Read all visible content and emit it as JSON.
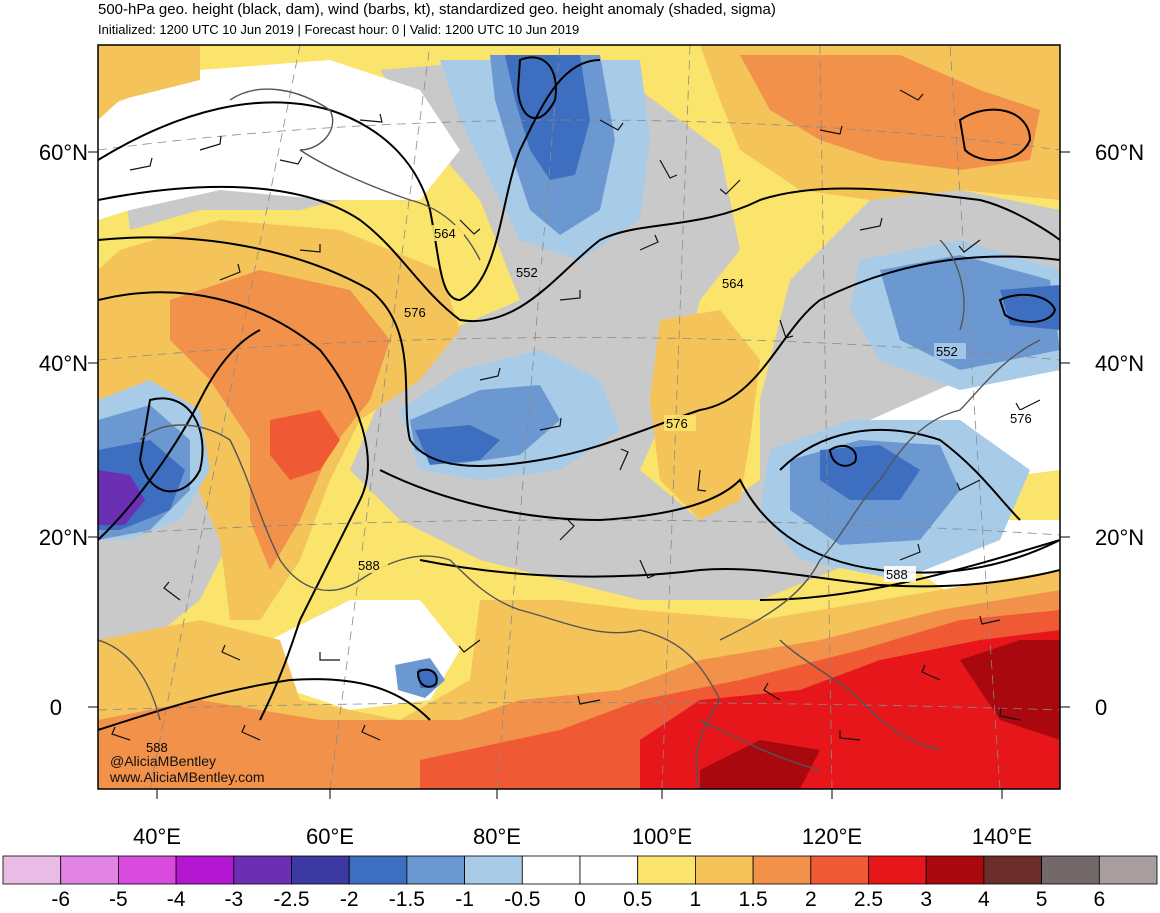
{
  "header": {
    "title": "500-hPa geo. height (black, dam), wind (barbs, kt), standardized geo. height anomaly (shaded, sigma)",
    "subtitle": "Initialized: 1200 UTC 10 Jun 2019 | Forecast hour: 0 | Valid: 1200 UTC 10 Jun 2019"
  },
  "map": {
    "lat_labels": [
      "60°N",
      "40°N",
      "20°N",
      "0"
    ],
    "lon_labels": [
      "40°E",
      "60°E",
      "80°E",
      "100°E",
      "120°E",
      "140°E"
    ],
    "contour_labels": [
      "564",
      "552",
      "576",
      "564",
      "552",
      "576",
      "576",
      "588",
      "588",
      "588"
    ],
    "credits": [
      "@AliciaMBentley",
      "www.AliciaMBentley.com"
    ]
  },
  "colorbar": {
    "ticks": [
      "-6",
      "-5",
      "-4",
      "-3",
      "-2.5",
      "-2",
      "-1.5",
      "-1",
      "-0.5",
      "0",
      "0.5",
      "1",
      "1.5",
      "2",
      "2.5",
      "3",
      "4",
      "5",
      "6"
    ],
    "colors": [
      "#e9bce6",
      "#e184e4",
      "#d94bdc",
      "#b417d2",
      "#6a2fb3",
      "#3c3aa2",
      "#3e6ec0",
      "#6c98d2",
      "#a8cbe8",
      "#ffffff",
      "#ffffff",
      "#fbe46b",
      "#f4c35a",
      "#f2914a",
      "#ef5a35",
      "#e6161a",
      "#a8080e",
      "#6b2e2b",
      "#73686a",
      "#a89e9e"
    ]
  }
}
